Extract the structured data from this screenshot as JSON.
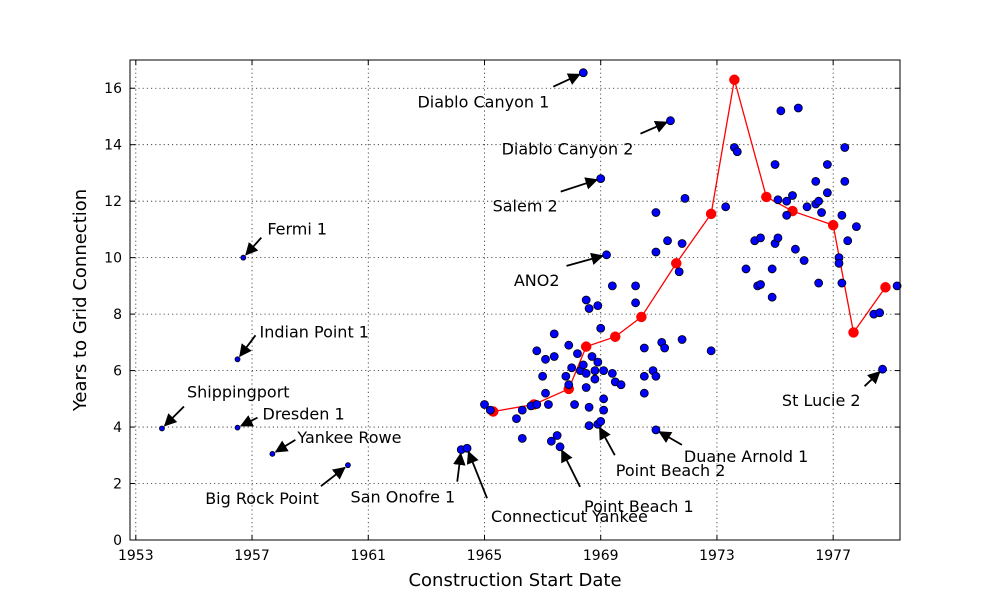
{
  "chart_data": {
    "type": "scatter",
    "title": "",
    "xlabel": "Construction Start Date",
    "ylabel": "Years to Grid Connection",
    "xlim": [
      1952.8,
      1979.3
    ],
    "ylim": [
      0,
      17
    ],
    "x_ticks": [
      1953,
      1957,
      1961,
      1965,
      1969,
      1973,
      1977
    ],
    "y_ticks": [
      0,
      2,
      4,
      6,
      8,
      10,
      12,
      14,
      16
    ],
    "grid": true,
    "colors": {
      "points": "#0000ff",
      "trend": "#ff0000",
      "edge": "#000000"
    },
    "series": [
      {
        "points": [
          [
            1953.9,
            3.95
          ],
          [
            1956.5,
            3.98
          ],
          [
            1956.5,
            6.4
          ],
          [
            1956.7,
            10.0
          ],
          [
            1957.7,
            3.05
          ],
          [
            1960.3,
            2.65
          ],
          [
            1964.2,
            3.2
          ],
          [
            1964.4,
            3.25
          ],
          [
            1965.0,
            4.8
          ],
          [
            1965.2,
            4.6
          ],
          [
            1966.1,
            4.3
          ],
          [
            1966.3,
            4.6
          ],
          [
            1966.3,
            3.6
          ],
          [
            1966.6,
            4.75
          ],
          [
            1966.8,
            4.8
          ],
          [
            1966.8,
            6.7
          ],
          [
            1967.0,
            5.8
          ],
          [
            1967.1,
            6.4
          ],
          [
            1967.1,
            5.2
          ],
          [
            1967.2,
            4.8
          ],
          [
            1967.3,
            3.5
          ],
          [
            1967.4,
            7.3
          ],
          [
            1967.4,
            6.5
          ],
          [
            1967.5,
            3.7
          ],
          [
            1967.6,
            3.3
          ],
          [
            1967.8,
            5.8
          ],
          [
            1967.9,
            6.9
          ],
          [
            1967.9,
            5.5
          ],
          [
            1968.0,
            6.1
          ],
          [
            1968.1,
            4.8
          ],
          [
            1968.2,
            6.6
          ],
          [
            1968.3,
            6.0
          ],
          [
            1968.4,
            6.2
          ],
          [
            1968.5,
            5.9
          ],
          [
            1968.5,
            5.4
          ],
          [
            1968.5,
            8.5
          ],
          [
            1968.6,
            8.2
          ],
          [
            1968.6,
            4.7
          ],
          [
            1968.6,
            4.05
          ],
          [
            1968.7,
            6.5
          ],
          [
            1968.8,
            6.0
          ],
          [
            1968.8,
            5.7
          ],
          [
            1968.9,
            8.3
          ],
          [
            1968.9,
            6.3
          ],
          [
            1968.9,
            4.1
          ],
          [
            1969.0,
            7.5
          ],
          [
            1969.0,
            4.2
          ],
          [
            1969.0,
            12.8
          ],
          [
            1969.1,
            6.0
          ],
          [
            1969.1,
            5.0
          ],
          [
            1969.1,
            4.6
          ],
          [
            1969.2,
            10.1
          ],
          [
            1968.4,
            16.55
          ],
          [
            1969.4,
            9.0
          ],
          [
            1969.4,
            5.9
          ],
          [
            1969.5,
            5.6
          ],
          [
            1969.7,
            5.5
          ],
          [
            1970.2,
            8.4
          ],
          [
            1970.2,
            9.0
          ],
          [
            1970.5,
            6.8
          ],
          [
            1970.5,
            5.2
          ],
          [
            1970.5,
            5.8
          ],
          [
            1970.8,
            6.0
          ],
          [
            1970.9,
            5.8
          ],
          [
            1970.9,
            3.9
          ],
          [
            1970.9,
            10.2
          ],
          [
            1970.9,
            11.6
          ],
          [
            1971.1,
            7.0
          ],
          [
            1971.2,
            6.8
          ],
          [
            1971.3,
            10.6
          ],
          [
            1971.4,
            14.85
          ],
          [
            1971.7,
            9.5
          ],
          [
            1971.8,
            7.1
          ],
          [
            1971.8,
            10.5
          ],
          [
            1971.9,
            12.1
          ],
          [
            1972.8,
            6.7
          ],
          [
            1973.3,
            11.8
          ],
          [
            1973.6,
            13.9
          ],
          [
            1973.7,
            13.75
          ],
          [
            1974.0,
            9.6
          ],
          [
            1974.3,
            10.6
          ],
          [
            1974.4,
            9.0
          ],
          [
            1974.5,
            10.7
          ],
          [
            1974.5,
            9.05
          ],
          [
            1974.9,
            8.6
          ],
          [
            1974.9,
            9.6
          ],
          [
            1975.0,
            13.3
          ],
          [
            1975.0,
            10.5
          ],
          [
            1975.1,
            10.7
          ],
          [
            1975.1,
            12.05
          ],
          [
            1975.2,
            15.2
          ],
          [
            1975.4,
            11.5
          ],
          [
            1975.4,
            12.0
          ],
          [
            1975.6,
            12.2
          ],
          [
            1975.7,
            10.3
          ],
          [
            1975.8,
            15.3
          ],
          [
            1976.0,
            9.9
          ],
          [
            1976.1,
            11.8
          ],
          [
            1976.4,
            12.7
          ],
          [
            1976.4,
            11.9
          ],
          [
            1976.5,
            12.0
          ],
          [
            1976.5,
            9.1
          ],
          [
            1976.6,
            11.6
          ],
          [
            1976.8,
            12.3
          ],
          [
            1976.8,
            13.3
          ],
          [
            1977.2,
            10.0
          ],
          [
            1977.2,
            9.8
          ],
          [
            1977.3,
            11.5
          ],
          [
            1977.3,
            9.1
          ],
          [
            1977.4,
            13.9
          ],
          [
            1977.4,
            12.7
          ],
          [
            1977.5,
            10.6
          ],
          [
            1977.8,
            11.1
          ],
          [
            1978.4,
            8.0
          ],
          [
            1978.6,
            8.05
          ],
          [
            1978.7,
            6.05
          ],
          [
            1979.2,
            9.0
          ]
        ]
      },
      {
        "line_points": [
          [
            1965.3,
            4.55
          ],
          [
            1966.7,
            4.8
          ],
          [
            1967.9,
            5.35
          ],
          [
            1968.5,
            6.85
          ],
          [
            1969.5,
            7.2
          ],
          [
            1970.4,
            7.9
          ],
          [
            1971.6,
            9.8
          ],
          [
            1972.8,
            11.55
          ],
          [
            1973.6,
            16.3
          ],
          [
            1974.7,
            12.15
          ],
          [
            1975.6,
            11.65
          ],
          [
            1977.0,
            11.15
          ],
          [
            1977.7,
            7.35
          ],
          [
            1978.8,
            8.95
          ]
        ]
      }
    ],
    "annotations": [
      {
        "label": "Shippingport",
        "point": [
          1953.9,
          3.95
        ]
      },
      {
        "label": "Dresden 1",
        "point": [
          1956.5,
          3.98
        ]
      },
      {
        "label": "Indian Point 1",
        "point": [
          1956.5,
          6.4
        ]
      },
      {
        "label": "Fermi 1",
        "point": [
          1956.7,
          10.0
        ]
      },
      {
        "label": "Yankee Rowe",
        "point": [
          1957.7,
          3.05
        ]
      },
      {
        "label": "Big Rock Point",
        "point": [
          1960.3,
          2.65
        ]
      },
      {
        "label": "San Onofre 1",
        "point": [
          1964.2,
          3.2
        ]
      },
      {
        "label": "Connecticut Yankee",
        "point": [
          1964.4,
          3.25
        ]
      },
      {
        "label": "Diablo Canyon 1",
        "point": [
          1968.4,
          16.55
        ]
      },
      {
        "label": "Diablo Canyon 2",
        "point": [
          1971.4,
          14.85
        ]
      },
      {
        "label": "Salem 2",
        "point": [
          1969.0,
          12.8
        ]
      },
      {
        "label": "ANO2",
        "point": [
          1969.2,
          10.1
        ]
      },
      {
        "label": "Point Beach 1",
        "point": [
          1967.6,
          3.3
        ]
      },
      {
        "label": "Point Beach 2",
        "point": [
          1968.9,
          4.1
        ]
      },
      {
        "label": "Duane Arnold 1",
        "point": [
          1970.9,
          3.9
        ]
      },
      {
        "label": "St Lucie 2",
        "point": [
          1978.7,
          6.05
        ]
      }
    ]
  }
}
